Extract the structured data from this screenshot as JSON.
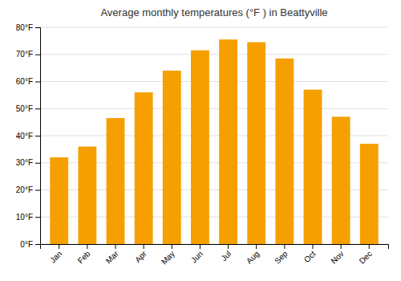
{
  "chart_data": {
    "type": "bar",
    "title": "Average monthly temperatures (°F ) in Beattyville",
    "categories": [
      "Jan",
      "Feb",
      "Mar",
      "Apr",
      "May",
      "Jun",
      "Jul",
      "Aug",
      "Sep",
      "Oct",
      "Nov",
      "Dec"
    ],
    "values": [
      32,
      36,
      46.5,
      56,
      64,
      71.5,
      75.5,
      74.5,
      68.5,
      57,
      47,
      37
    ],
    "color": "#F5A000",
    "ylim": [
      0,
      80
    ],
    "yticks": [
      {
        "value": 0,
        "label": "0°F"
      },
      {
        "value": 10,
        "label": "10°F"
      },
      {
        "value": 20,
        "label": "20°F"
      },
      {
        "value": 30,
        "label": "30°F"
      },
      {
        "value": 40,
        "label": "40°F"
      },
      {
        "value": 50,
        "label": "50°F"
      },
      {
        "value": 60,
        "label": "60°F"
      },
      {
        "value": 70,
        "label": "70°F"
      },
      {
        "value": 80,
        "label": "80°F"
      }
    ],
    "grid": true
  }
}
